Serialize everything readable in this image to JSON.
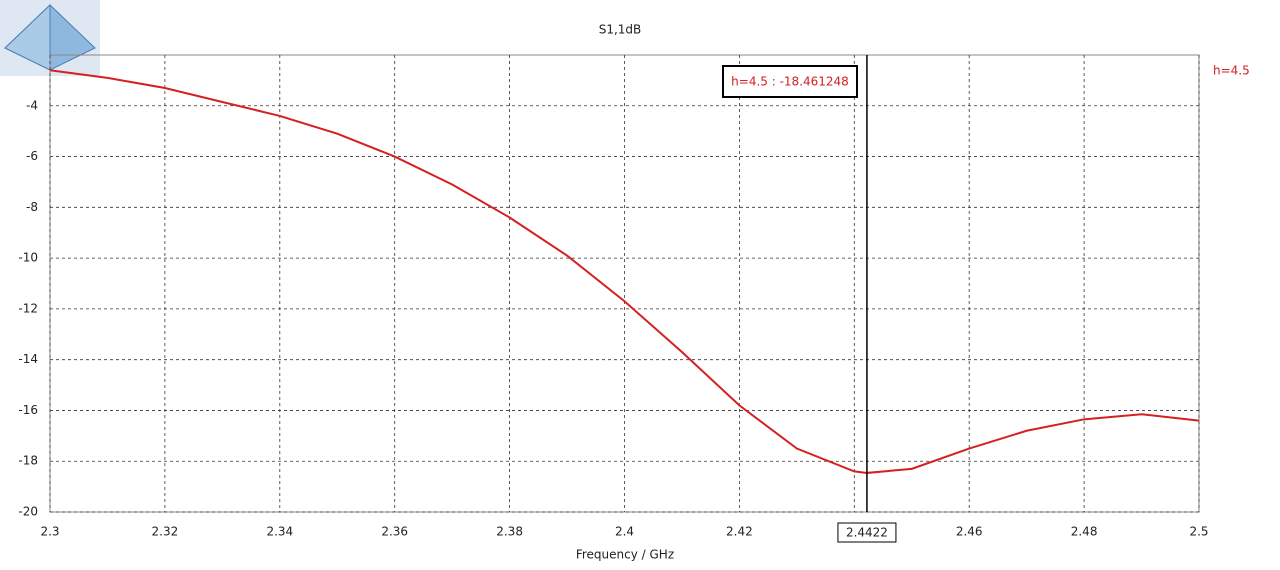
{
  "chart_data": {
    "type": "line",
    "title": "S1,1dB",
    "x_label": "Frequency / GHz",
    "x": [
      2.3,
      2.31,
      2.32,
      2.33,
      2.34,
      2.35,
      2.36,
      2.37,
      2.38,
      2.39,
      2.4,
      2.41,
      2.42,
      2.43,
      2.44,
      2.4422,
      2.45,
      2.46,
      2.47,
      2.48,
      2.49,
      2.5
    ],
    "series": [
      {
        "name": "h=4.5",
        "color": "#d42020",
        "values": [
          -2.6,
          -2.9,
          -3.3,
          -3.85,
          -4.4,
          -5.1,
          -6.0,
          -7.1,
          -8.4,
          -9.9,
          -11.7,
          -13.7,
          -15.8,
          -17.5,
          -18.4,
          -18.461248,
          -18.3,
          -17.5,
          -16.8,
          -16.35,
          -16.15,
          -16.4
        ]
      }
    ],
    "xlim": [
      2.3,
      2.5
    ],
    "xticks": [
      2.3,
      2.32,
      2.34,
      2.36,
      2.38,
      2.4,
      2.42,
      2.44,
      2.46,
      2.48,
      2.5
    ],
    "ylim": [
      -20,
      -2
    ],
    "yticks": [
      -20,
      -18,
      -16,
      -14,
      -12,
      -10,
      -8,
      -6,
      -4
    ],
    "grid": true,
    "marker": {
      "x": 2.4422,
      "annotation": "h=4.5 : -18.461248"
    }
  }
}
